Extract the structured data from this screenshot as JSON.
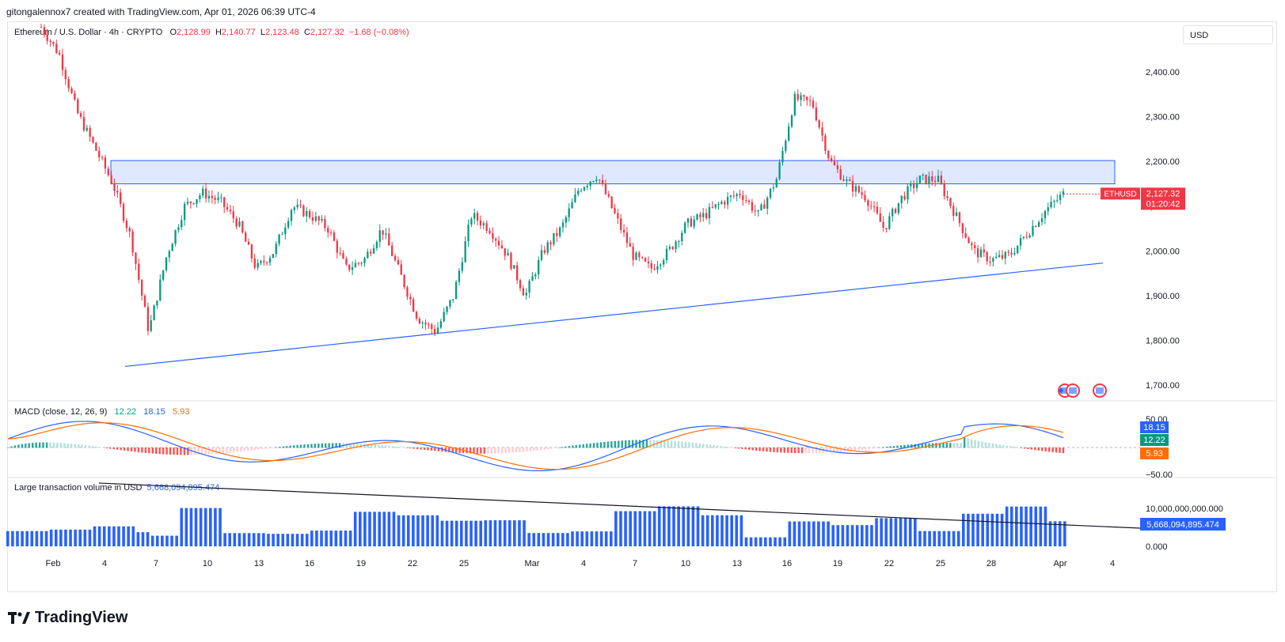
{
  "header": {
    "credit": "gitongalennox7 created with TradingView.com, Apr 01, 2026 06:39 UTC-4"
  },
  "legend": {
    "symbol": "Ethereum / U.S. Dollar · 4h · CRYPTO",
    "o_label": "O",
    "o": "2,128.99",
    "h_label": "H",
    "h": "2,140.77",
    "l_label": "L",
    "l": "2,123.48",
    "c_label": "C",
    "c": "2,127.32",
    "change": "−1.68 (−0.08%)"
  },
  "currency": "USD",
  "price_tag": {
    "symbol": "ETHUSD",
    "price": "2,127.32",
    "countdown": "01:20:42"
  },
  "macd_label": {
    "name": "MACD (close, 12, 26, 9)",
    "hist": "12.22",
    "macd": "18.15",
    "signal": "5.93"
  },
  "volume_label": {
    "name": "Large transaction volume in USD",
    "value": "5,668,094,895.474"
  },
  "brand": {
    "name": "TradingView"
  },
  "colors": {
    "up": "#089981",
    "down": "#f23645",
    "zone": "#2962ff",
    "macd_line": "#2962ff",
    "signal_line": "#ff6d00",
    "volume": "#2962ff"
  },
  "chart_data": {
    "type": "candlestick",
    "x_ticks": [
      "Feb",
      "4",
      "7",
      "10",
      "13",
      "16",
      "19",
      "22",
      "25",
      "Mar",
      "4",
      "7",
      "10",
      "13",
      "16",
      "19",
      "22",
      "25",
      "28",
      "Apr",
      "4"
    ],
    "price_axis": {
      "ticks": [
        "2,400.00",
        "2,300.00",
        "2,200.00",
        "2,100.00",
        "2,000.00",
        "1,900.00",
        "1,800.00",
        "1,700.00"
      ]
    },
    "resistance_zone": [
      2150,
      2202
    ],
    "support_trendline": {
      "from": {
        "x": "Feb 5",
        "y": 1742
      },
      "to": {
        "x": "Apr 3",
        "y": 1973
      }
    },
    "price_path": [
      2500,
      2440,
      2310,
      2230,
      2150,
      2030,
      1820,
      1990,
      2100,
      2130,
      2110,
      2060,
      1960,
      2000,
      2100,
      2080,
      2050,
      1960,
      1980,
      2050,
      1950,
      1850,
      1820,
      1900,
      2080,
      2050,
      1990,
      1900,
      2000,
      2050,
      2140,
      2170,
      2080,
      1990,
      1960,
      2000,
      2060,
      2080,
      2110,
      2130,
      2080,
      2160,
      2340,
      2330,
      2200,
      2150,
      2120,
      2050,
      2120,
      2160,
      2160,
      2080,
      2000,
      1980,
      1990,
      2040,
      2090,
      2127
    ],
    "macd_axis": {
      "ticks": [
        "50.00",
        "−50.00"
      ]
    },
    "macd_tags": {
      "macd": "18.15",
      "hist": "12.22",
      "signal": "5.93"
    },
    "volume_axis": {
      "ticks": [
        "10,000,000,000.000",
        "0.000"
      ]
    },
    "volume_tag": "5,668,094,895.474"
  }
}
